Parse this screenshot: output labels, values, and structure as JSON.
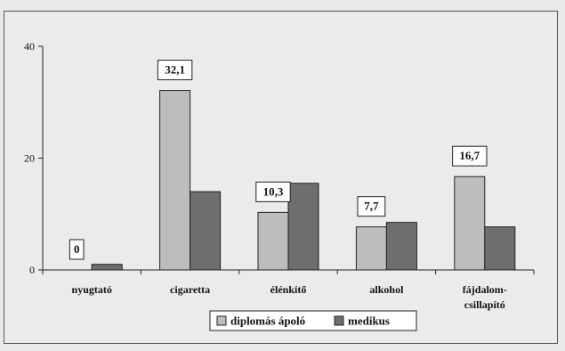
{
  "chart_data": {
    "type": "bar",
    "categories": [
      [
        "nyugtató"
      ],
      [
        "cigaretta"
      ],
      [
        "élénkítő"
      ],
      [
        "alkohol"
      ],
      [
        "fájdalom-",
        "csillapító"
      ]
    ],
    "series": [
      {
        "name": "diplomás ápoló",
        "values": [
          0,
          32.1,
          10.3,
          7.7,
          16.7
        ],
        "color": "#bdbdbd"
      },
      {
        "name": "medikus",
        "values": [
          1,
          14,
          15.5,
          8.5,
          7.7
        ],
        "color": "#6e6e6e"
      }
    ],
    "data_labels": [
      "0",
      "32,1",
      "10,3",
      "7,7",
      "16,7"
    ],
    "ylim": [
      0,
      40
    ],
    "yticks": [
      0,
      20,
      40
    ],
    "grid": false,
    "legend": "bottom"
  }
}
